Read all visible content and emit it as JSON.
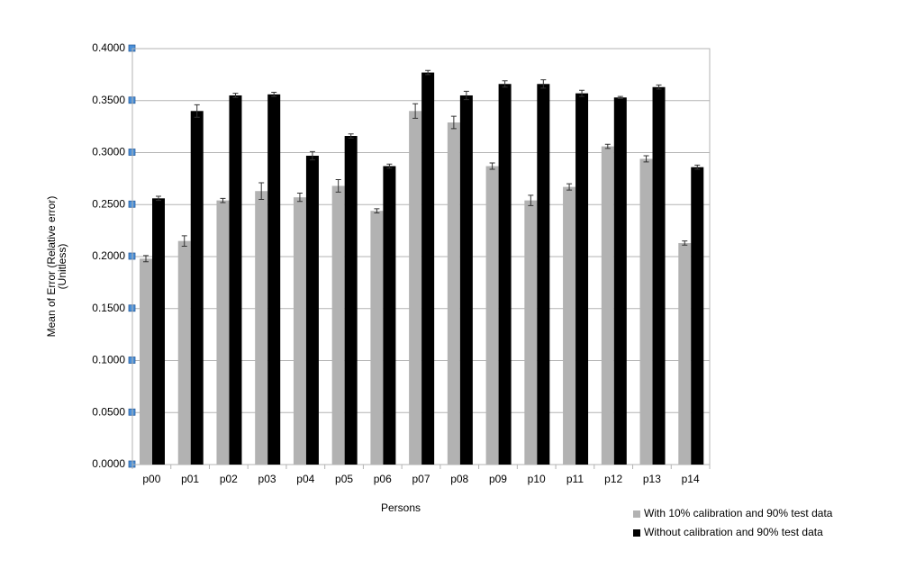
{
  "chart_data": {
    "type": "bar",
    "x_label": "Persons",
    "y_label": [
      "Mean of Error (Relative error)",
      "(Unitless)"
    ],
    "categories": [
      "p00",
      "p01",
      "p02",
      "p03",
      "p04",
      "p05",
      "p06",
      "p07",
      "p08",
      "p09",
      "p10",
      "p11",
      "p12",
      "p13",
      "p14"
    ],
    "series": [
      {
        "name": "With 10% calibration and 90% test data",
        "color": "#b2b2b2",
        "values": [
          0.198,
          0.215,
          0.254,
          0.263,
          0.257,
          0.268,
          0.244,
          0.34,
          0.329,
          0.287,
          0.254,
          0.267,
          0.306,
          0.294,
          0.213
        ],
        "errors": [
          0.003,
          0.005,
          0.002,
          0.008,
          0.004,
          0.006,
          0.002,
          0.007,
          0.006,
          0.003,
          0.005,
          0.003,
          0.002,
          0.003,
          0.002
        ]
      },
      {
        "name": "Without calibration and 90% test data",
        "color": "#000000",
        "values": [
          0.256,
          0.34,
          0.355,
          0.356,
          0.297,
          0.316,
          0.287,
          0.377,
          0.355,
          0.366,
          0.366,
          0.357,
          0.353,
          0.363,
          0.286
        ],
        "errors": [
          0.002,
          0.006,
          0.002,
          0.002,
          0.004,
          0.002,
          0.002,
          0.002,
          0.004,
          0.003,
          0.004,
          0.003,
          0.001,
          0.002,
          0.002
        ]
      }
    ],
    "ylim": [
      0,
      0.4
    ],
    "yticks": [
      {
        "value": 0,
        "label": "0.0000"
      },
      {
        "value": 0.05,
        "label": "0.0500"
      },
      {
        "value": 0.1,
        "label": "0.1000"
      },
      {
        "value": 0.15,
        "label": "0.1500"
      },
      {
        "value": 0.2,
        "label": "0.2000"
      },
      {
        "value": 0.25,
        "label": "0.2500"
      },
      {
        "value": 0.3,
        "label": "0.3000"
      },
      {
        "value": 0.35,
        "label": "0.3500"
      },
      {
        "value": 0.4,
        "label": "0.4000"
      }
    ],
    "grid": true,
    "legend": "bottom-right"
  }
}
